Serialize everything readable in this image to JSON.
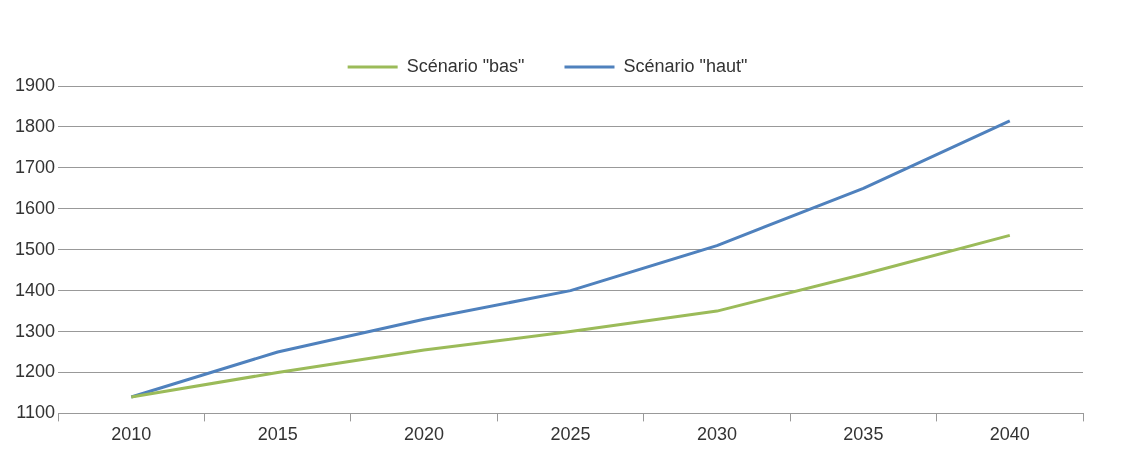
{
  "chart_data": {
    "type": "line",
    "categories": [
      "2010",
      "2015",
      "2020",
      "2025",
      "2030",
      "2035",
      "2040"
    ],
    "series": [
      {
        "name": "Scénario \"bas\"",
        "color": "#9bbb59",
        "values": [
          1140,
          1200,
          1255,
          1300,
          1350,
          1440,
          1535
        ]
      },
      {
        "name": "Scénario \"haut\"",
        "color": "#4f81bd",
        "values": [
          1140,
          1250,
          1330,
          1400,
          1510,
          1650,
          1815
        ]
      }
    ],
    "ylim": [
      1100,
      1900
    ],
    "yticks": [
      1100,
      1200,
      1300,
      1400,
      1500,
      1600,
      1700,
      1800,
      1900
    ],
    "grid": "y",
    "legend": "top",
    "marker": "none",
    "line_style": "solid"
  }
}
